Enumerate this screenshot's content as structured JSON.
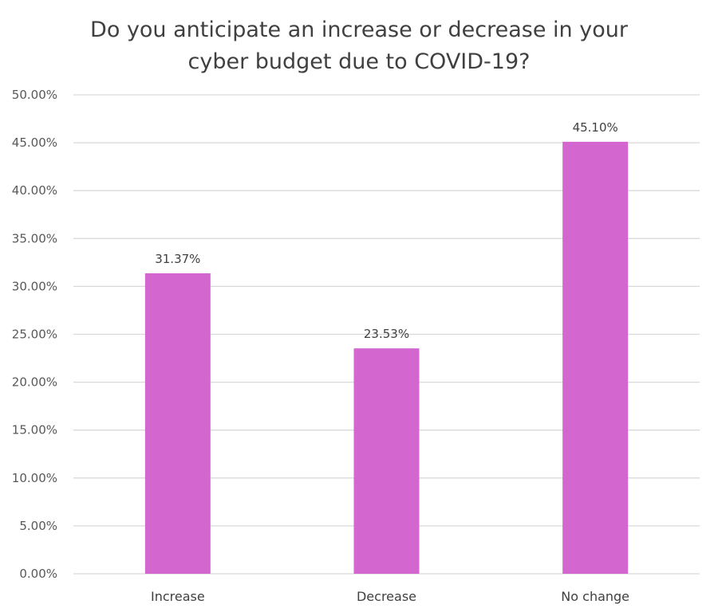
{
  "chart_data": {
    "type": "bar",
    "title": "Do you anticipate an increase or decrease in your cyber budget due to COVID-19?",
    "title_lines": [
      "Do you anticipate an increase or decrease in your",
      "cyber budget due to COVID-19?"
    ],
    "xlabel": "",
    "ylabel": "",
    "categories": [
      "Increase",
      "Decrease",
      "No change"
    ],
    "values": [
      31.37,
      23.53,
      45.1
    ],
    "data_labels": [
      "31.37%",
      "23.53%",
      "45.10%"
    ],
    "ylim": [
      0,
      50
    ],
    "ytick_step": 5,
    "y_ticks": [
      "0.00%",
      "5.00%",
      "10.00%",
      "15.00%",
      "20.00%",
      "25.00%",
      "30.00%",
      "35.00%",
      "40.00%",
      "45.00%",
      "50.00%"
    ],
    "grid": true,
    "legend": "none",
    "bar_color": "#d366cf"
  }
}
